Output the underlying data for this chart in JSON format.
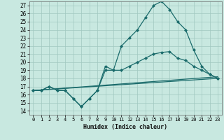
{
  "xlabel": "Humidex (Indice chaleur)",
  "xlim": [
    -0.5,
    23.5
  ],
  "ylim": [
    13.5,
    27.5
  ],
  "yticks": [
    14,
    15,
    16,
    17,
    18,
    19,
    20,
    21,
    22,
    23,
    24,
    25,
    26,
    27
  ],
  "xticks": [
    0,
    1,
    2,
    3,
    4,
    5,
    6,
    7,
    8,
    9,
    10,
    11,
    12,
    13,
    14,
    15,
    16,
    17,
    18,
    19,
    20,
    21,
    22,
    23
  ],
  "bg_color": "#c8e8e0",
  "grid_color": "#a0c8c0",
  "line_color": "#1a6b6b",
  "series": [
    {
      "x": [
        0,
        1,
        2,
        3,
        4,
        5,
        6,
        7,
        8,
        9,
        10,
        11,
        12,
        13,
        14,
        15,
        16,
        17,
        18,
        19,
        20,
        21,
        22,
        23
      ],
      "y": [
        16.5,
        16.5,
        17.0,
        16.5,
        16.5,
        15.5,
        14.5,
        15.5,
        16.5,
        19.5,
        19.0,
        22.0,
        23.0,
        24.0,
        25.5,
        27.0,
        27.5,
        26.5,
        25.0,
        24.0,
        21.5,
        19.5,
        18.5,
        18.0
      ],
      "marker": true
    },
    {
      "x": [
        0,
        1,
        2,
        3,
        4,
        5,
        6,
        7,
        8,
        9,
        10,
        11,
        12,
        13,
        14,
        15,
        16,
        17,
        18,
        19,
        20,
        21,
        22,
        23
      ],
      "y": [
        16.5,
        16.5,
        17.0,
        16.5,
        16.5,
        15.5,
        14.5,
        15.5,
        16.5,
        19.0,
        19.0,
        19.0,
        19.5,
        20.0,
        20.5,
        21.0,
        21.2,
        21.3,
        20.5,
        20.2,
        19.5,
        19.0,
        18.5,
        18.0
      ],
      "marker": true
    },
    {
      "x": [
        0,
        23
      ],
      "y": [
        16.5,
        18.2
      ],
      "marker": false
    },
    {
      "x": [
        0,
        23
      ],
      "y": [
        16.5,
        18.0
      ],
      "marker": false
    }
  ]
}
